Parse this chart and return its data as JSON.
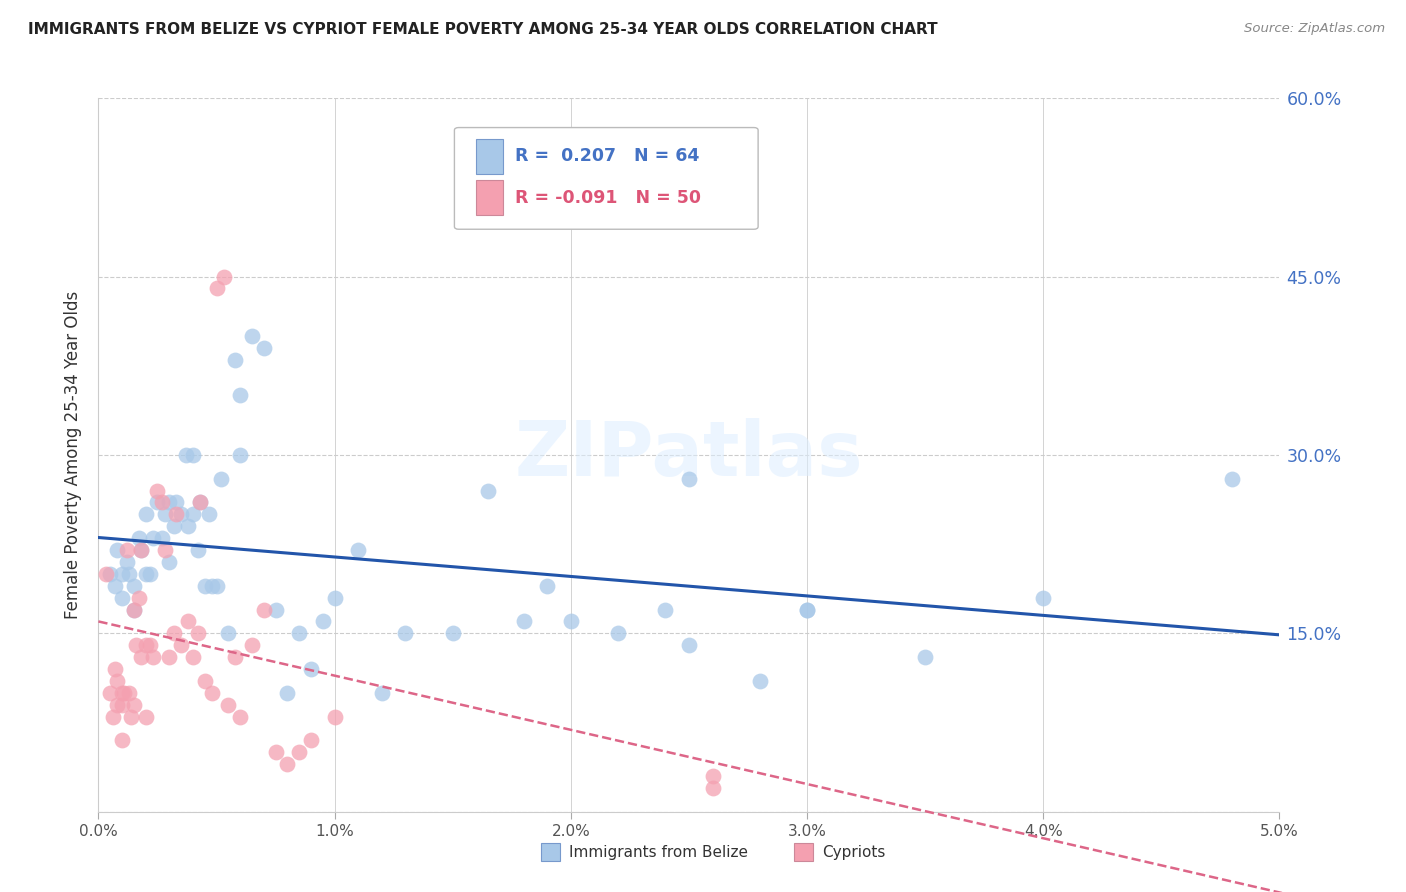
{
  "title": "IMMIGRANTS FROM BELIZE VS CYPRIOT FEMALE POVERTY AMONG 25-34 YEAR OLDS CORRELATION CHART",
  "source": "Source: ZipAtlas.com",
  "ylabel": "Female Poverty Among 25-34 Year Olds",
  "watermark": "ZIPatlas",
  "blue_label": "Immigrants from Belize",
  "pink_label": "Cypriots",
  "blue_R": 0.207,
  "blue_N": 64,
  "pink_R": -0.091,
  "pink_N": 50,
  "blue_color": "#a8c8e8",
  "pink_color": "#f4a0b0",
  "trend_blue": "#2255aa",
  "trend_pink": "#dd6688",
  "xmin": 0.0,
  "xmax": 5.0,
  "ymin": 0.0,
  "ymax": 60.0,
  "yticks": [
    0,
    15,
    30,
    45,
    60
  ],
  "ytick_labels": [
    "",
    "15.0%",
    "30.0%",
    "45.0%",
    "60.0%"
  ],
  "grid_color": "#cccccc",
  "background_color": "#ffffff",
  "blue_x": [
    0.05,
    0.07,
    0.08,
    0.1,
    0.1,
    0.12,
    0.13,
    0.15,
    0.15,
    0.17,
    0.18,
    0.2,
    0.2,
    0.22,
    0.23,
    0.25,
    0.27,
    0.28,
    0.3,
    0.3,
    0.32,
    0.33,
    0.35,
    0.37,
    0.38,
    0.4,
    0.42,
    0.43,
    0.45,
    0.47,
    0.48,
    0.5,
    0.52,
    0.55,
    0.58,
    0.6,
    0.65,
    0.7,
    0.75,
    0.8,
    0.85,
    0.9,
    0.95,
    1.0,
    1.1,
    1.2,
    1.3,
    1.5,
    1.65,
    1.9,
    2.0,
    2.2,
    2.4,
    2.5,
    2.8,
    3.0,
    3.5,
    4.0,
    4.8,
    0.4,
    0.6,
    1.8,
    2.5,
    3.0
  ],
  "blue_y": [
    20.0,
    19.0,
    22.0,
    18.0,
    20.0,
    21.0,
    20.0,
    17.0,
    19.0,
    23.0,
    22.0,
    20.0,
    25.0,
    20.0,
    23.0,
    26.0,
    23.0,
    25.0,
    21.0,
    26.0,
    24.0,
    26.0,
    25.0,
    30.0,
    24.0,
    30.0,
    22.0,
    26.0,
    19.0,
    25.0,
    19.0,
    19.0,
    28.0,
    15.0,
    38.0,
    35.0,
    40.0,
    39.0,
    17.0,
    10.0,
    15.0,
    12.0,
    16.0,
    18.0,
    22.0,
    10.0,
    15.0,
    15.0,
    27.0,
    19.0,
    16.0,
    15.0,
    17.0,
    28.0,
    11.0,
    17.0,
    13.0,
    18.0,
    28.0,
    25.0,
    30.0,
    16.0,
    14.0,
    17.0
  ],
  "pink_x": [
    0.03,
    0.05,
    0.06,
    0.07,
    0.08,
    0.08,
    0.1,
    0.1,
    0.1,
    0.11,
    0.12,
    0.13,
    0.14,
    0.15,
    0.15,
    0.16,
    0.17,
    0.18,
    0.18,
    0.2,
    0.2,
    0.22,
    0.23,
    0.25,
    0.27,
    0.28,
    0.3,
    0.32,
    0.33,
    0.35,
    0.38,
    0.4,
    0.42,
    0.43,
    0.45,
    0.48,
    0.5,
    0.53,
    0.55,
    0.58,
    0.6,
    0.65,
    0.7,
    0.75,
    0.8,
    0.85,
    0.9,
    1.0,
    2.6,
    2.6
  ],
  "pink_y": [
    20.0,
    10.0,
    8.0,
    12.0,
    9.0,
    11.0,
    6.0,
    9.0,
    10.0,
    10.0,
    22.0,
    10.0,
    8.0,
    9.0,
    17.0,
    14.0,
    18.0,
    22.0,
    13.0,
    8.0,
    14.0,
    14.0,
    13.0,
    27.0,
    26.0,
    22.0,
    13.0,
    15.0,
    25.0,
    14.0,
    16.0,
    13.0,
    15.0,
    26.0,
    11.0,
    10.0,
    44.0,
    45.0,
    9.0,
    13.0,
    8.0,
    14.0,
    17.0,
    5.0,
    4.0,
    5.0,
    6.0,
    8.0,
    3.0,
    2.0
  ]
}
